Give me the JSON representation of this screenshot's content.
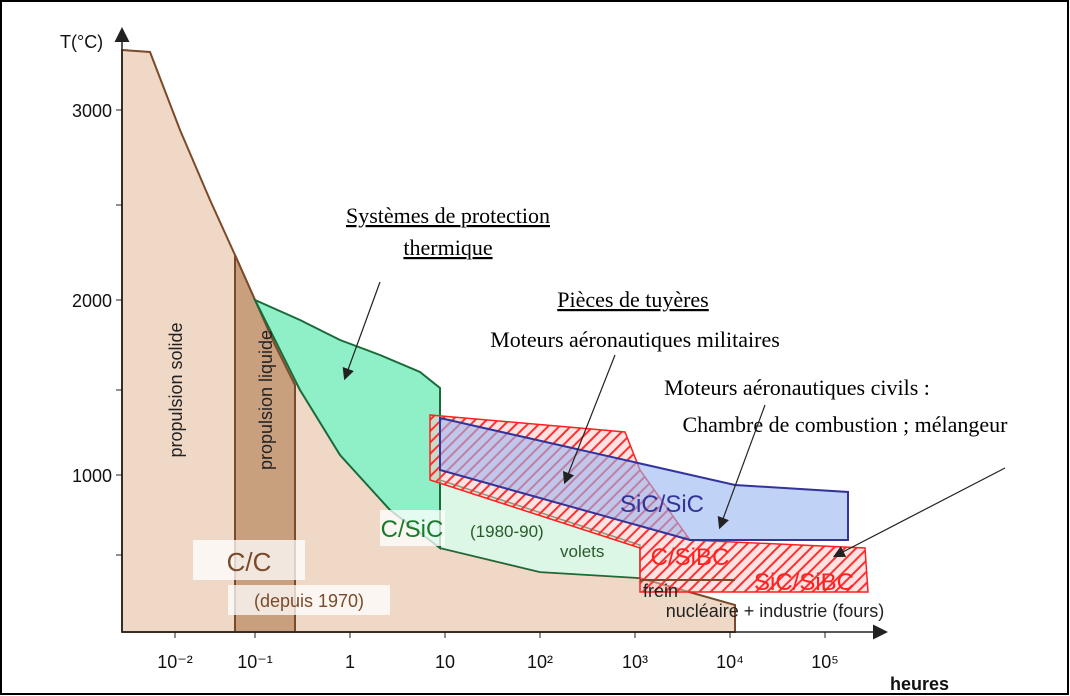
{
  "axes": {
    "y_label": "T(°C)",
    "x_label": "heures",
    "y_ticks": [
      "3000",
      "2000",
      "1000"
    ],
    "x_ticks": [
      "10⁻²",
      "10⁻¹",
      "1",
      "10",
      "10²",
      "10³",
      "10⁴",
      "10⁵"
    ]
  },
  "regions": {
    "solid": "propulsion solide",
    "liquid": "propulsion liquide",
    "cc": "C/C",
    "cc_date": "(depuis 1970)",
    "csic": "C/SiC",
    "csic_date": "(1980-90)",
    "volets": "volets",
    "sicsic": "SiC/SiC",
    "csibc": "C/SiBC",
    "sicsibc": "SiC/SiBC",
    "frein": "frein",
    "industry": "nucléaire + industrie (fours)"
  },
  "annotations": {
    "tps_1": "Systèmes de protection",
    "tps_2": "thermique",
    "nozzle": "Pièces de tuyères",
    "military": "Moteurs aéronautiques militaires",
    "civil_1": "Moteurs aéronautiques civils :",
    "civil_2": "Chambre de combustion ; mélangeur"
  }
}
